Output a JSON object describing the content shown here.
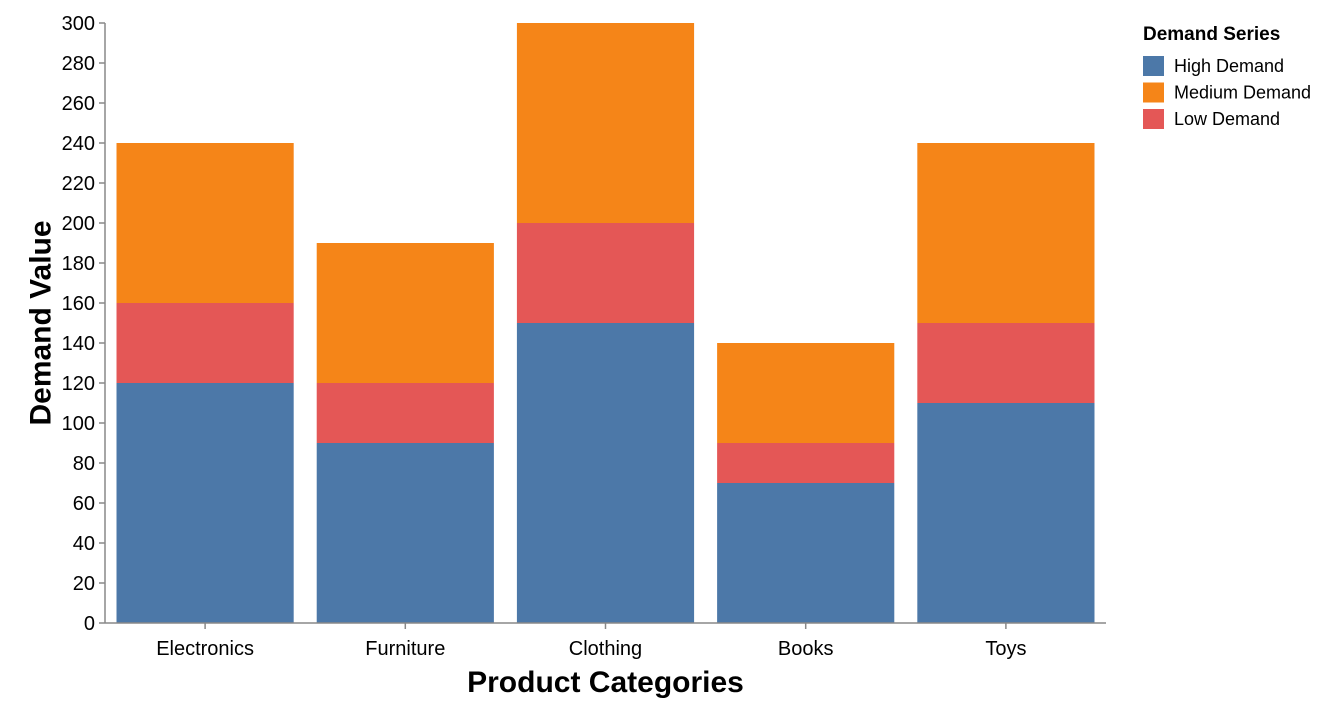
{
  "chart_data": {
    "type": "bar",
    "stacked": true,
    "categories": [
      "Electronics",
      "Furniture",
      "Clothing",
      "Books",
      "Toys"
    ],
    "series": [
      {
        "name": "High Demand",
        "color": "#4c78a8",
        "values": [
          120,
          90,
          150,
          70,
          110
        ]
      },
      {
        "name": "Low Demand",
        "color": "#e45756",
        "values": [
          40,
          30,
          50,
          20,
          40
        ]
      },
      {
        "name": "Medium Demand",
        "color": "#f58518",
        "values": [
          80,
          70,
          100,
          50,
          90
        ]
      }
    ],
    "xlabel": "Product Categories",
    "ylabel": "Demand Value",
    "ylim": [
      0,
      300
    ],
    "yticks": [
      "0",
      "20",
      "40",
      "60",
      "80",
      "100",
      "120",
      "140",
      "160",
      "180",
      "200",
      "220",
      "240",
      "260",
      "280",
      "300"
    ],
    "grid": false,
    "legend": {
      "title": "Demand Series",
      "placement": "top-right",
      "items": [
        {
          "label": "High Demand",
          "color": "#4c78a8"
        },
        {
          "label": "Medium Demand",
          "color": "#f58518"
        },
        {
          "label": "Low Demand",
          "color": "#e45756"
        }
      ]
    }
  }
}
